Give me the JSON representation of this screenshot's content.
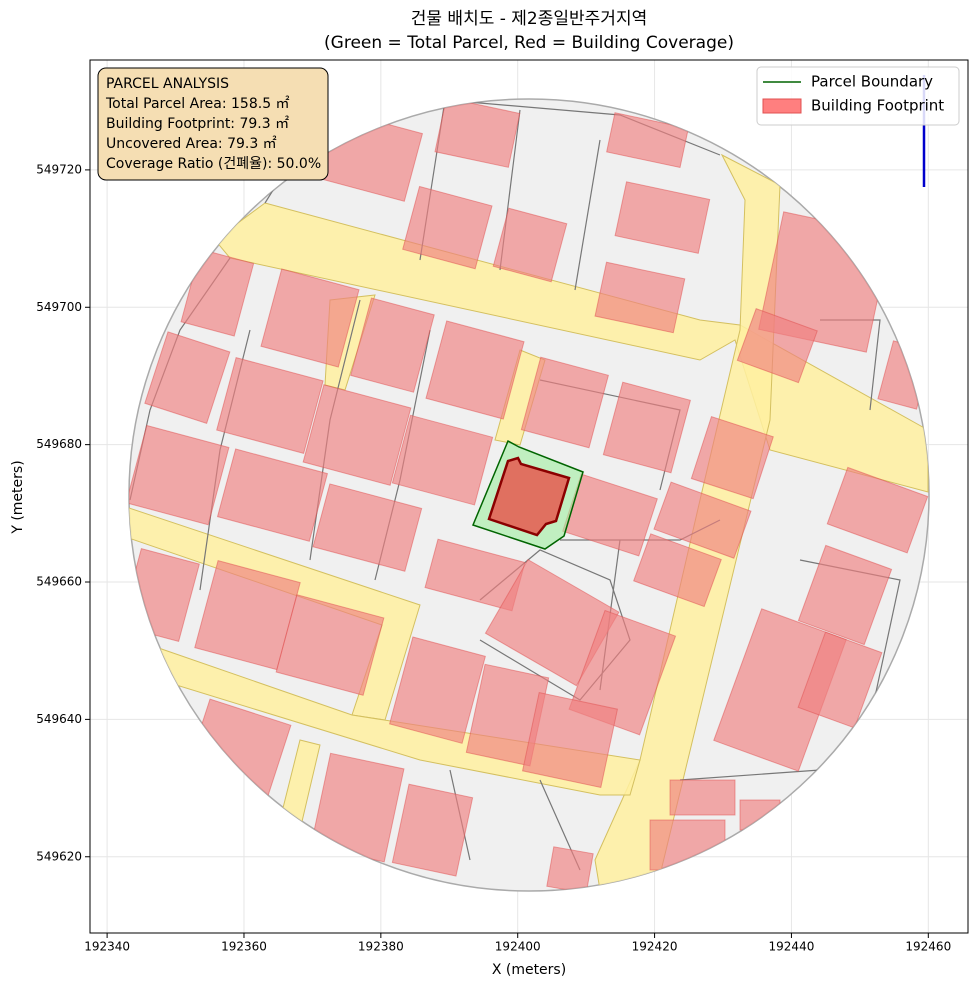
{
  "chart_data": {
    "type": "map",
    "title": "건물 배치도 - 제2종일반주거지역",
    "subtitle": "(Green = Total Parcel, Red = Building Coverage)",
    "xlabel": "X (meters)",
    "ylabel": "Y (meters)",
    "xlim": [
      192337.5,
      192465.8
    ],
    "ylim": [
      549608.9,
      549736.0
    ],
    "xticks": [
      192340,
      192360,
      192380,
      192400,
      192420,
      192440,
      192460
    ],
    "yticks": [
      549620,
      549640,
      549660,
      549680,
      549700,
      549720
    ],
    "grid": true,
    "legend": "upper right",
    "series": [
      {
        "name": "Parcel Boundary",
        "color": "#006400"
      },
      {
        "name": "Building Footprint",
        "color": "#ff7f7f"
      }
    ],
    "annotation": [
      "PARCEL ANALYSIS",
      "Total Parcel Area: 158.5 ㎡",
      "Building Footprint: 79.3 ㎡",
      "Uncovered Area: 79.3 ㎡",
      "Coverage Ratio (건폐율): 50.0%"
    ]
  }
}
